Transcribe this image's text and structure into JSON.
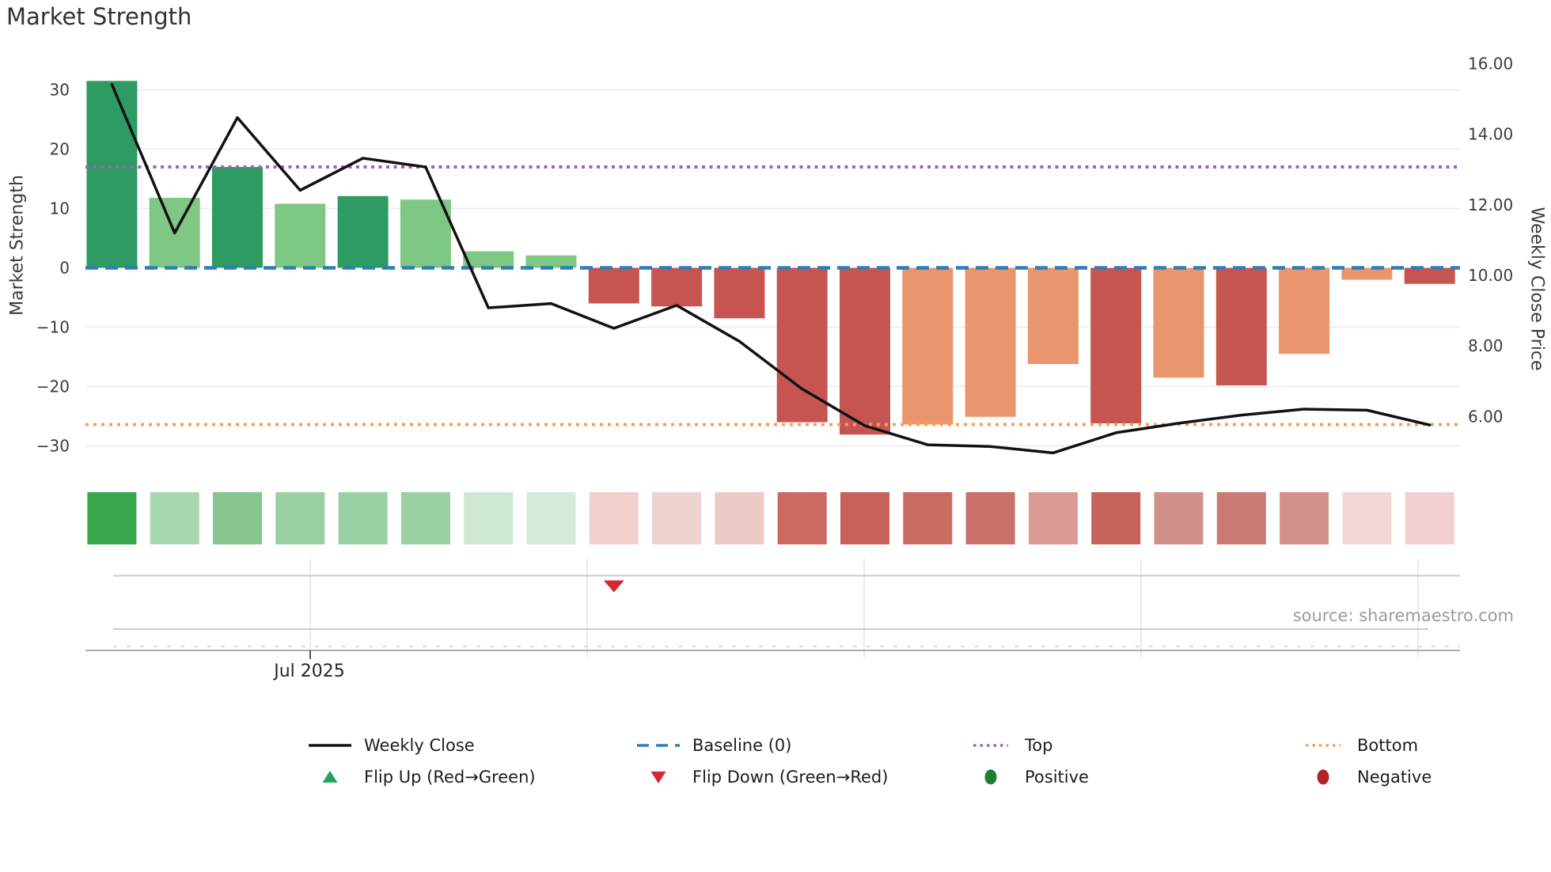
{
  "title": "Market Strength",
  "source_note": "source: sharemaestro.com",
  "axes": {
    "left": {
      "title": "Market Strength",
      "tick_values": [
        30,
        20,
        10,
        0,
        -10,
        -20,
        -30
      ],
      "tick_labels": [
        "30",
        "20",
        "10",
        "0",
        "−10",
        "−20",
        "−30"
      ]
    },
    "right": {
      "title": "Weekly Close Price",
      "tick_values": [
        16,
        14,
        12,
        10,
        8,
        6
      ],
      "tick_labels": [
        "16.00",
        "14.00",
        "12.00",
        "10.00",
        "8.00",
        "6.00"
      ]
    },
    "x": {
      "visible_tick_label": "Jul 2025"
    }
  },
  "legend": {
    "rows": [
      [
        {
          "swatch": "line_solid",
          "color": "#111111",
          "label": "Weekly Close"
        },
        {
          "swatch": "line_dashed",
          "color": "#2f7eb8",
          "label": "Baseline (0)"
        },
        {
          "swatch": "line_dotted",
          "color": "#9467bd",
          "label": "Top"
        },
        {
          "swatch": "line_dotted",
          "color": "#f1a35e",
          "label": "Bottom"
        }
      ],
      [
        {
          "swatch": "triangle_up",
          "color": "#22a35f",
          "label": "Flip Up (Red→Green)"
        },
        {
          "swatch": "triangle_down",
          "color": "#d7282f",
          "label": "Flip Down (Green→Red)"
        },
        {
          "swatch": "circle",
          "color": "#1d8034",
          "label": "Positive"
        },
        {
          "swatch": "circle",
          "color": "#b02626",
          "label": "Negative"
        }
      ]
    ]
  },
  "chart_data": {
    "type": "bar+line dual-axis with heatmap strip",
    "n_points": 22,
    "bars": {
      "name": "Market Strength",
      "axis": "left",
      "values": [
        31.5,
        11.8,
        17,
        10.8,
        12.1,
        11.5,
        2.8,
        2.1,
        -6,
        -6.5,
        -8.5,
        -26,
        -28.1,
        -26.4,
        -25.1,
        -16.2,
        -26.2,
        -18.5,
        -19.8,
        -14.5,
        -2,
        -2.7
      ],
      "color_keys": [
        "dark_green",
        "light_green",
        "dark_green",
        "light_green",
        "dark_green",
        "light_green",
        "light_green",
        "light_green",
        "red",
        "red",
        "red",
        "red",
        "red",
        "salmon",
        "salmon",
        "salmon",
        "red",
        "salmon",
        "red",
        "salmon",
        "salmon",
        "red"
      ]
    },
    "palette": {
      "dark_green": "#2e9b62",
      "light_green": "#7fc883",
      "red": "#c65551",
      "salmon": "#e9956e"
    },
    "line": {
      "name": "Weekly Close",
      "axis": "right",
      "color": "#111111",
      "values": [
        15.41,
        11.2,
        14.47,
        12.41,
        13.32,
        13.07,
        9.08,
        9.2,
        8.5,
        9.15,
        8.13,
        6.78,
        5.74,
        5.2,
        5.15,
        4.97,
        5.54,
        5.81,
        6.04,
        6.21,
        6.18,
        5.76
      ]
    },
    "reference_lines": {
      "baseline": {
        "value": 0,
        "color": "#2f7eb8",
        "style": "dashed"
      },
      "top": {
        "value": 17,
        "color": "#9467bd",
        "style": "dotted"
      },
      "bottom": {
        "value": -26.4,
        "color": "#f1a35e",
        "style": "dotted"
      }
    },
    "left_ylim": [
      -36,
      37
    ],
    "right_ylim": [
      4.1,
      16.4
    ],
    "grid": "horizontal, on left-axis ticks",
    "legend_position": "bottom",
    "heatmap_strip": [
      "#38a64d",
      "#a8d6ae",
      "#86c68f",
      "#9ad0a2",
      "#9ad0a2",
      "#9ad0a2",
      "#cde7d1",
      "#d5ebd9",
      "#efd0cb",
      "#eed2ce",
      "#eccbc6",
      "#cc6a62",
      "#c6625a",
      "#c86c64",
      "#ca716a",
      "#dc9a94",
      "#c6645c",
      "#d2908a",
      "#cb7b73",
      "#d49089",
      "#f3d7d5",
      "#f0d1cf"
    ],
    "flip_markers": {
      "flip_down_at_point": 9,
      "flip_up_at_point": null
    }
  }
}
